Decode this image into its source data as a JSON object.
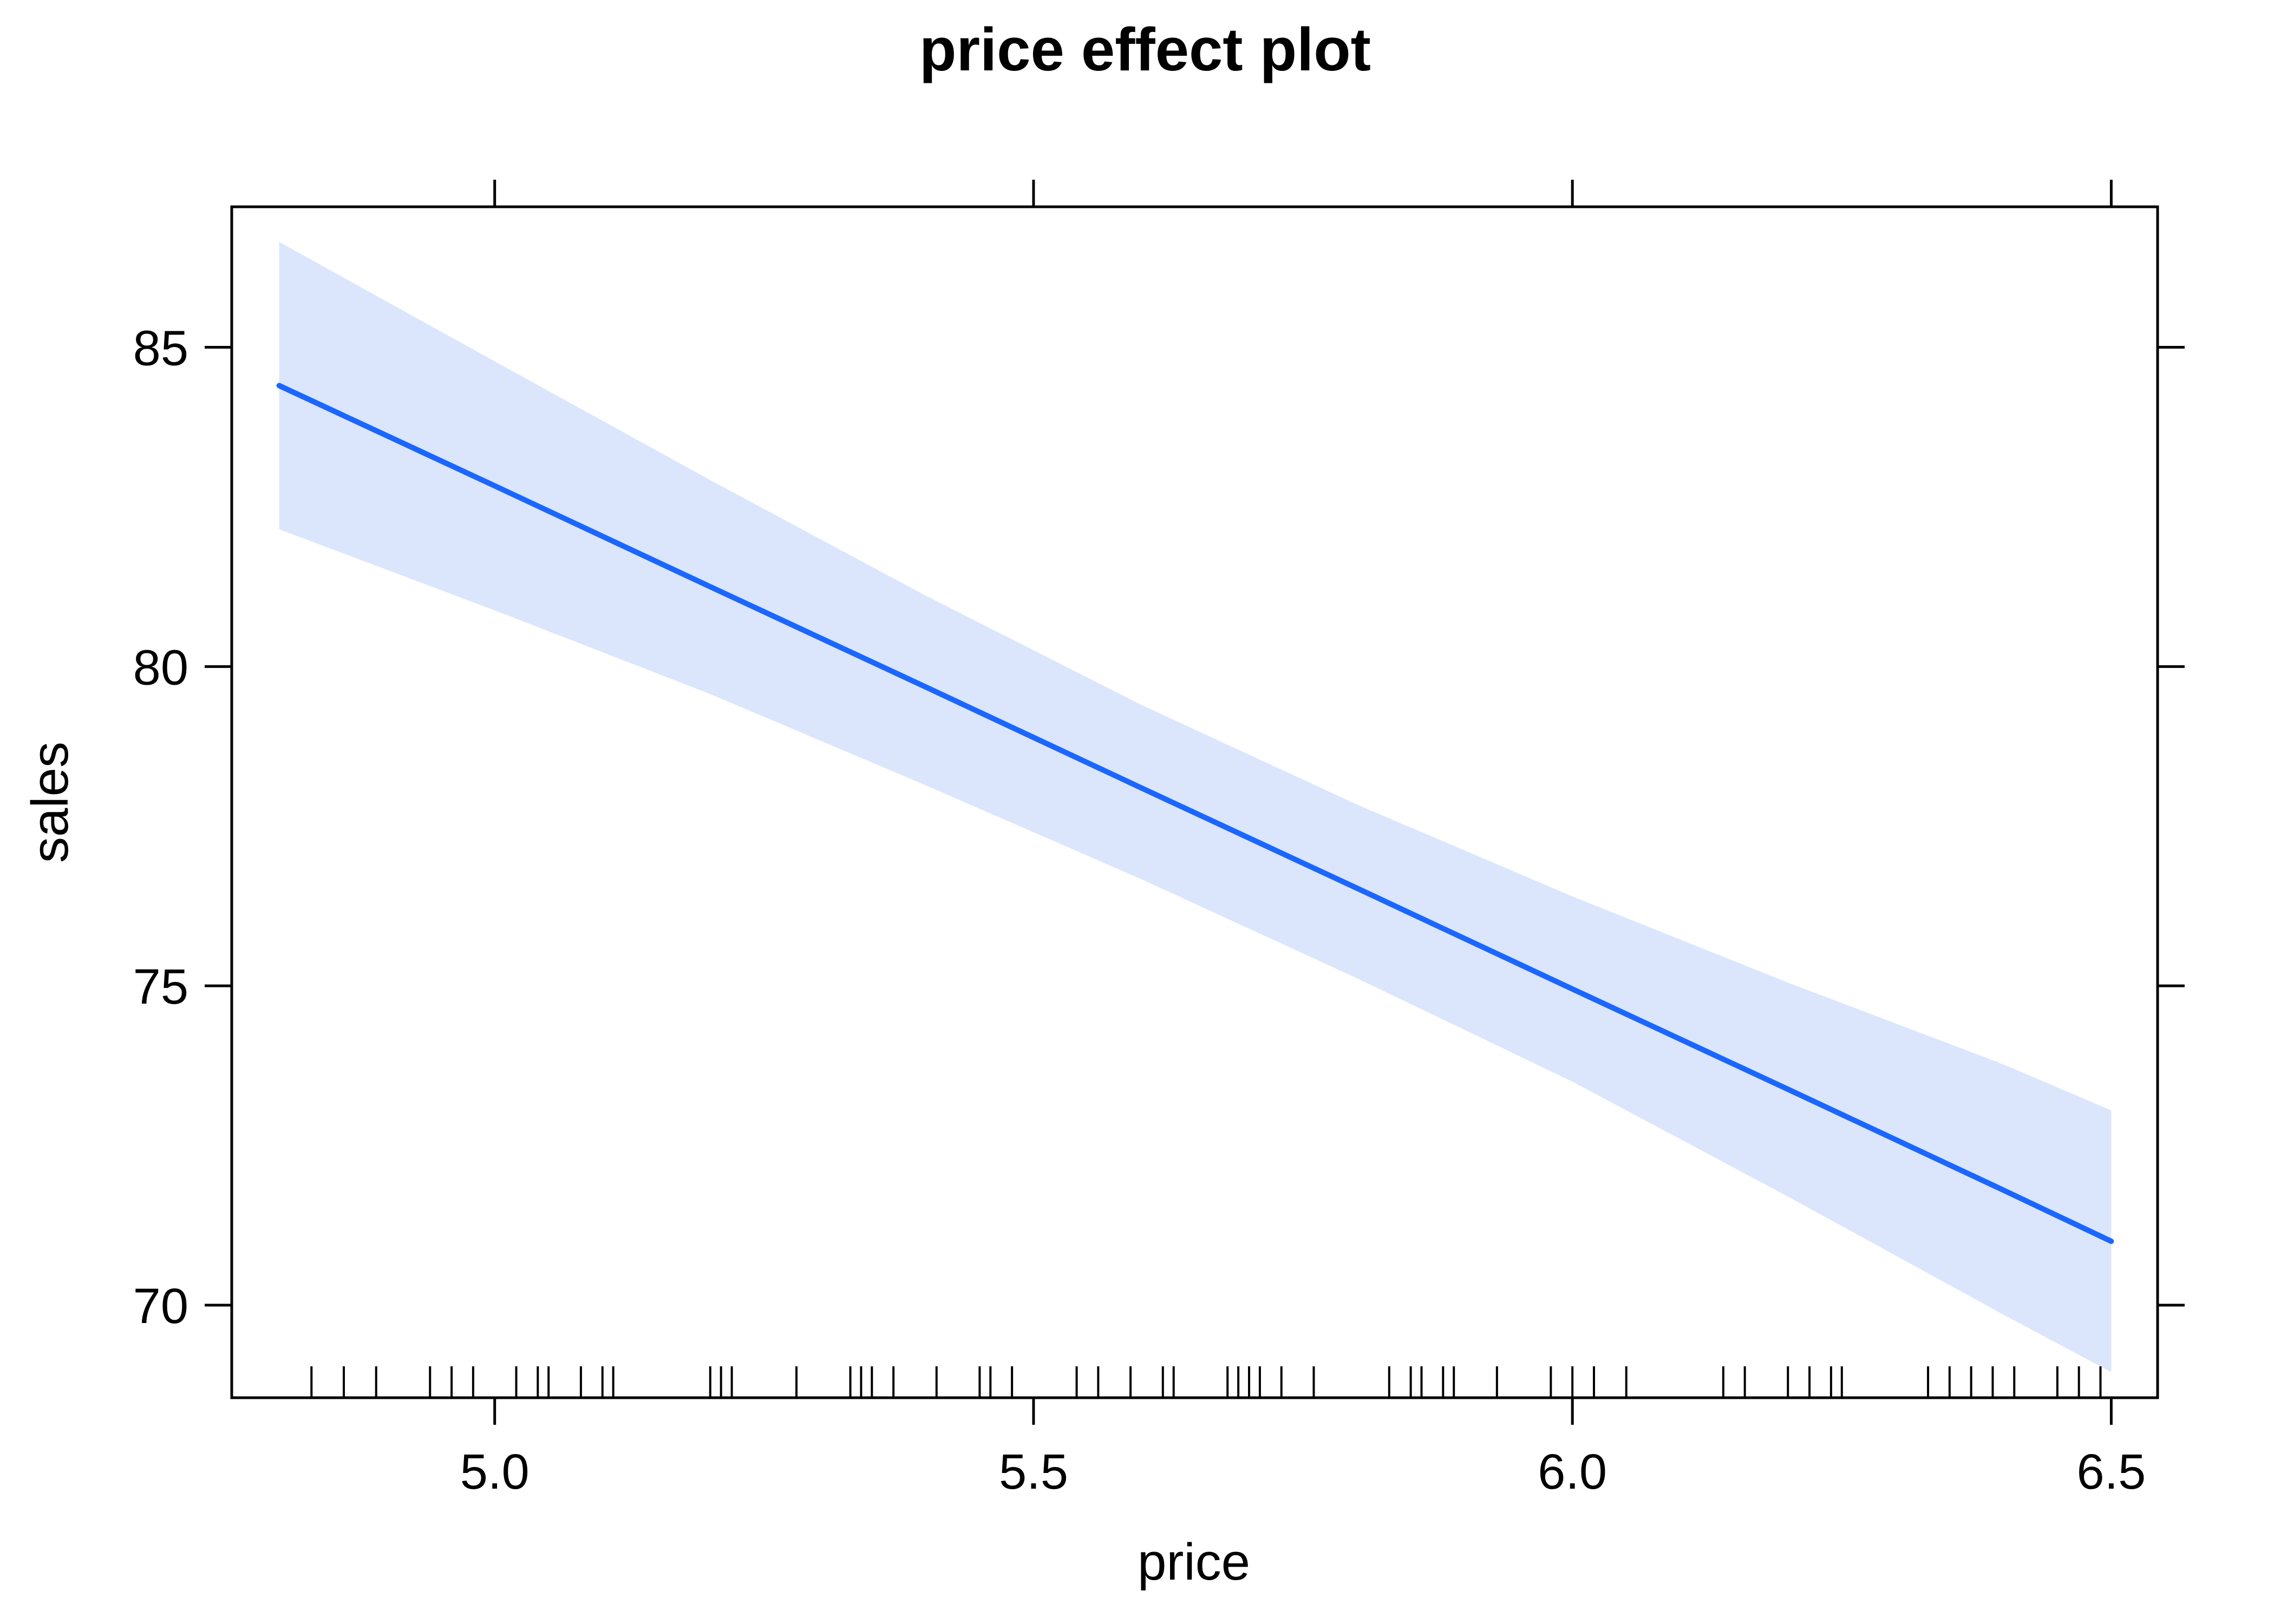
{
  "chart_data": {
    "type": "line",
    "title": "price effect plot",
    "xlabel": "price",
    "ylabel": "sales",
    "xlim": [
      4.756,
      6.543
    ],
    "ylim": [
      68.55,
      87.2
    ],
    "x_ticks": [
      5.0,
      5.5,
      6.0,
      6.5
    ],
    "x_tick_labels": [
      "5.0",
      "5.5",
      "6.0",
      "6.5"
    ],
    "y_ticks": [
      70,
      75,
      80,
      85
    ],
    "y_tick_labels": [
      "70",
      "75",
      "80",
      "85"
    ],
    "grid": false,
    "legend": "none",
    "series": [
      {
        "x": [
          4.8,
          5.0,
          5.2,
          5.4,
          5.6,
          5.8,
          6.0,
          6.2,
          6.4,
          6.5
        ],
        "fit": [
          84.4,
          82.83,
          81.25,
          79.68,
          78.1,
          76.53,
          74.95,
          73.38,
          71.8,
          71.0
        ],
        "upper": [
          86.65,
          84.78,
          82.92,
          81.11,
          79.4,
          77.84,
          76.4,
          75.05,
          73.77,
          73.05
        ],
        "lower": [
          82.15,
          80.88,
          79.57,
          78.14,
          76.67,
          75.12,
          73.5,
          71.7,
          69.85,
          68.95
        ]
      }
    ],
    "rug_x": [
      4.83,
      4.86,
      4.89,
      4.94,
      4.96,
      4.98,
      5.02,
      5.04,
      5.05,
      5.08,
      5.1,
      5.11,
      5.2,
      5.21,
      5.22,
      5.28,
      5.33,
      5.34,
      5.35,
      5.37,
      5.41,
      5.45,
      5.46,
      5.48,
      5.54,
      5.56,
      5.59,
      5.62,
      5.63,
      5.68,
      5.69,
      5.7,
      5.71,
      5.73,
      5.76,
      5.83,
      5.85,
      5.86,
      5.88,
      5.89,
      5.93,
      5.98,
      6.0,
      6.02,
      6.05,
      6.14,
      6.16,
      6.2,
      6.22,
      6.24,
      6.25,
      6.33,
      6.35,
      6.37,
      6.39,
      6.41,
      6.45,
      6.47,
      6.49
    ],
    "colors": {
      "line": "#1a66ff",
      "band": "#dbe6fd",
      "axis": "#000000"
    }
  }
}
